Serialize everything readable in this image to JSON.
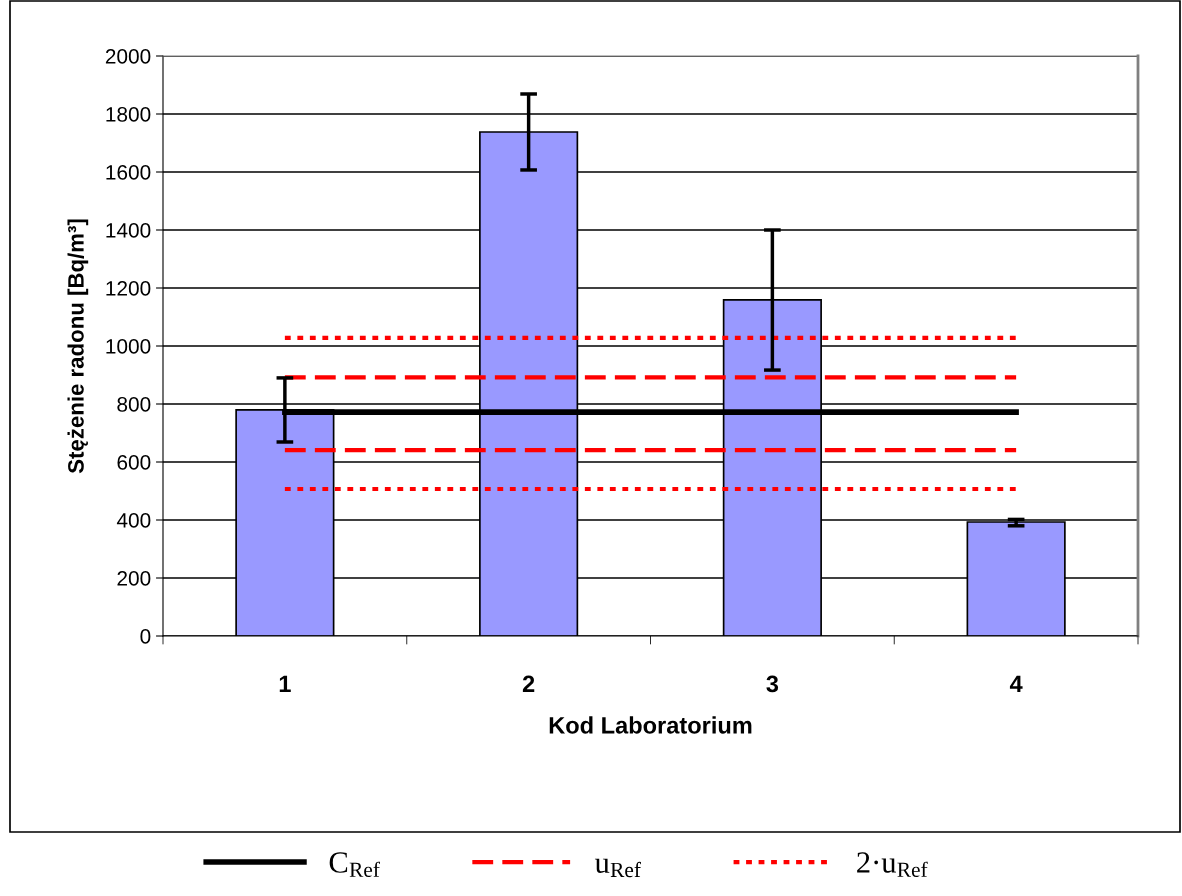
{
  "chart_data": {
    "type": "bar",
    "xlabel": "Kod Laboratorium",
    "ylabel": "Stężenie radonu [Bq/m³]",
    "categories": [
      "1",
      "2",
      "3",
      "4"
    ],
    "series": [
      {
        "color": "#9999ff",
        "values": [
          780,
          1738,
          1159,
          393
        ],
        "errors": [
          [
            669,
            890
          ],
          [
            1607,
            1869
          ],
          [
            917,
            1400
          ],
          [
            380,
            402
          ]
        ]
      },
      {
        "type": "line",
        "name": "C$_{Ref}$",
        "color": "#000000",
        "line_style": "solid",
        "values": [
          772,
          772,
          772,
          772
        ]
      },
      {
        "type": "line",
        "name": "u$_{Ref}$",
        "color": "#ff0000",
        "line_style": "dashed",
        "values": [
          892,
          892,
          892,
          892
        ]
      },
      {
        "type": "line",
        "color": "#ff0000",
        "line_style": "dashed",
        "values": [
          641,
          641,
          641,
          641
        ]
      },
      {
        "type": "line",
        "name": "2·u$_{Ref}$",
        "color": "#ff0000",
        "line_style": "dotted",
        "values": [
          1028,
          1028,
          1028,
          1028
        ]
      },
      {
        "type": "line",
        "color": "#ff0000",
        "line_style": "dotted",
        "values": [
          507,
          507,
          507,
          507
        ]
      }
    ],
    "ylim": [
      0,
      2000
    ],
    "yticks": [
      0,
      200,
      400,
      600,
      800,
      1000,
      1200,
      1400,
      1600,
      1800,
      2000
    ],
    "grid": "y",
    "legend": "bottom",
    "marker": "none"
  }
}
